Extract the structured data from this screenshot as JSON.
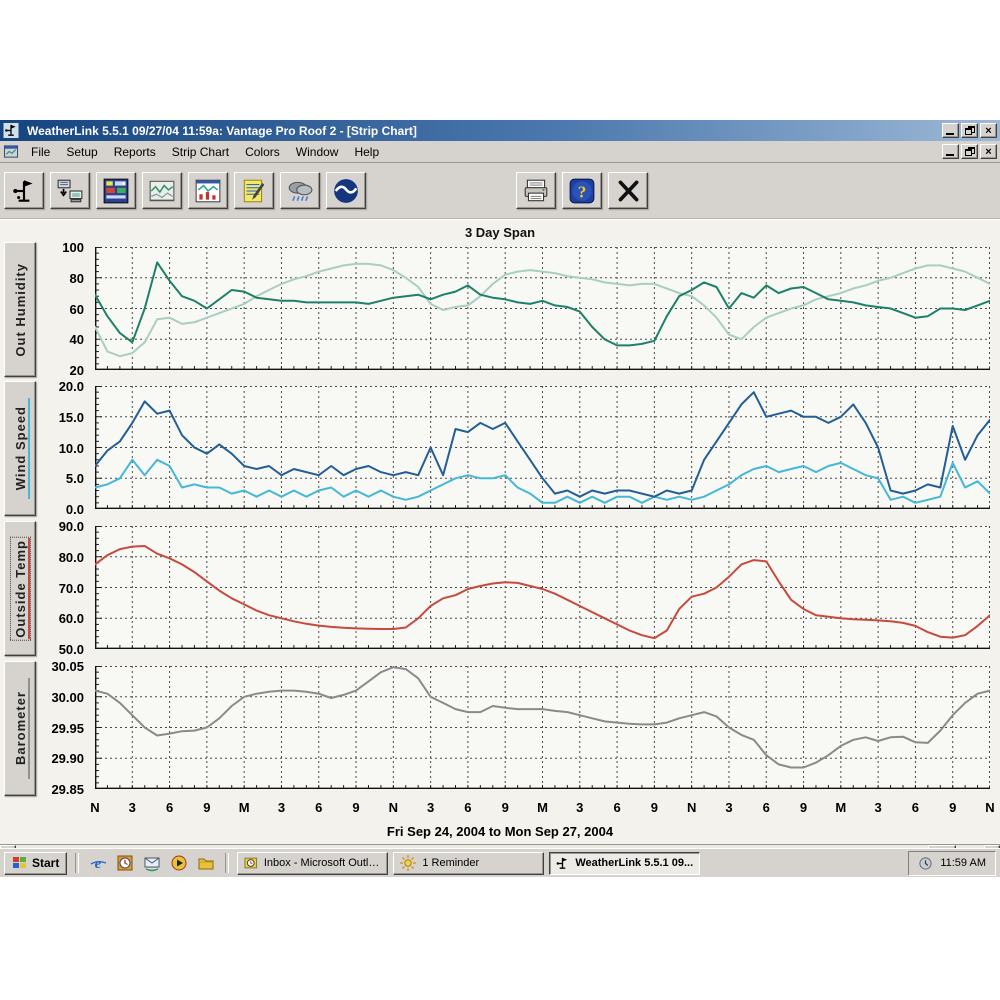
{
  "window": {
    "title": "WeatherLink 5.5.1  09/27/04  11:59a: Vantage Pro Roof 2 - [Strip Chart]",
    "menu": [
      "File",
      "Setup",
      "Reports",
      "Strip Chart",
      "Colors",
      "Window",
      "Help"
    ],
    "toolbar_icons": [
      "weather-station",
      "download",
      "bulletin",
      "strip-chart",
      "plot",
      "report",
      "weather-cloud",
      "noaa",
      "print",
      "help",
      "close"
    ]
  },
  "chart_data": {
    "type": "line",
    "title": "3 Day Span",
    "footer": "Fri Sep 24, 2004  to  Mon Sep 27, 2004",
    "grid": true,
    "plot_bg": "#f8f8f4",
    "x_labels": [
      "N",
      "3",
      "6",
      "9",
      "M",
      "3",
      "6",
      "9",
      "N",
      "3",
      "6",
      "9",
      "M",
      "3",
      "6",
      "9",
      "N",
      "3",
      "6",
      "9",
      "M",
      "3",
      "6",
      "9",
      "N"
    ],
    "x_hours_total": 72,
    "panels": [
      {
        "name": "Out Humidity",
        "ylim": [
          20,
          100
        ],
        "yticks": [
          "100",
          "80",
          "60",
          "40",
          "20"
        ],
        "underline": null,
        "focused": false,
        "series": [
          {
            "color": "#a9cec2",
            "values": [
              48,
              32,
              29,
              31,
              38,
              53,
              54,
              50,
              51,
              54,
              57,
              60,
              63,
              68,
              72,
              76,
              79,
              81,
              84,
              86,
              88,
              89,
              89,
              88,
              85,
              80,
              74,
              63,
              59,
              61,
              62,
              68,
              76,
              82,
              84,
              85,
              84,
              83,
              81,
              80,
              79,
              77,
              76,
              75,
              76,
              76,
              73,
              70,
              68,
              62,
              54,
              43,
              40,
              48,
              54,
              57,
              60,
              62,
              66,
              68,
              70,
              73,
              75,
              78,
              80,
              83,
              86,
              88,
              88,
              86,
              84,
              80,
              76
            ]
          },
          {
            "color": "#1d8169",
            "values": [
              69,
              55,
              44,
              38,
              60,
              90,
              78,
              68,
              65,
              60,
              66,
              72,
              71,
              67,
              66,
              65,
              65,
              64,
              64,
              64,
              64,
              64,
              63,
              65,
              67,
              68,
              69,
              66,
              69,
              71,
              75,
              69,
              67,
              66,
              64,
              63,
              65,
              62,
              61,
              58,
              48,
              40,
              36,
              36,
              37,
              39,
              55,
              68,
              72,
              77,
              74,
              60,
              70,
              67,
              75,
              70,
              73,
              74,
              70,
              66,
              65,
              64,
              62,
              61,
              60,
              57,
              54,
              55,
              60,
              60,
              59,
              62,
              65
            ]
          }
        ]
      },
      {
        "name": "Wind Speed",
        "ylim": [
          0,
          20
        ],
        "yticks": [
          "20.0",
          "15.0",
          "10.0",
          "5.0",
          "0.0"
        ],
        "underline": "#45b8d8",
        "focused": false,
        "series": [
          {
            "color": "#45b8d8",
            "values": [
              3.5,
              4,
              5,
              8,
              5.5,
              8,
              7,
              3.5,
              4,
              3.5,
              3.5,
              2.5,
              3,
              2,
              3,
              2,
              3,
              2,
              3,
              3.5,
              2,
              3,
              2,
              3,
              2,
              1.5,
              2,
              3,
              4,
              5,
              5.5,
              5,
              5,
              5.5,
              3.5,
              2.5,
              1,
              1,
              2,
              1,
              2,
              1,
              2,
              2,
              1,
              2,
              1.5,
              2,
              1.5,
              2,
              3,
              4,
              5.5,
              6.5,
              7,
              6,
              6.5,
              7,
              6,
              7,
              7.5,
              6.5,
              5.5,
              5,
              1.5,
              2,
              1,
              1.5,
              2,
              7.5,
              3.5,
              4.5,
              2.5
            ]
          },
          {
            "color": "#235f94",
            "values": [
              7,
              9.5,
              11,
              14,
              17.5,
              15.5,
              16,
              12,
              10,
              9,
              10.5,
              9,
              7,
              6.5,
              7,
              5.5,
              6.5,
              6,
              5.5,
              7,
              5.5,
              6.5,
              7,
              6,
              5.5,
              6,
              5.5,
              10,
              5.5,
              13,
              12.5,
              14,
              13,
              14,
              11,
              8,
              5,
              2.5,
              3,
              2,
              3,
              2.5,
              3,
              3,
              2.5,
              2,
              3,
              2.5,
              3,
              8,
              11,
              14,
              17,
              19,
              15,
              15.5,
              16,
              15,
              15,
              14,
              15,
              17,
              14,
              10,
              3,
              2.5,
              3,
              4,
              3.5,
              13.5,
              8,
              12,
              14.5
            ]
          }
        ]
      },
      {
        "name": "Outside Temp",
        "ylim": [
          50,
          90
        ],
        "yticks": [
          "90.0",
          "80.0",
          "70.0",
          "60.0",
          "50.0"
        ],
        "underline": "#c64a3e",
        "focused": true,
        "series": [
          {
            "color": "#c64a3e",
            "values": [
              77.5,
              80.5,
              82.5,
              83.3,
              83.5,
              81,
              79.5,
              77.5,
              75,
              72,
              69,
              66.5,
              64.5,
              62.5,
              61,
              60,
              59,
              58.2,
              57.6,
              57.2,
              56.9,
              56.7,
              56.6,
              56.5,
              56.5,
              57,
              60,
              64,
              66.5,
              67.5,
              69.5,
              70.5,
              71.3,
              71.7,
              71.5,
              70.5,
              69.5,
              68,
              66,
              64,
              62,
              60,
              58,
              56,
              54.5,
              53.5,
              56,
              63,
              67,
              68,
              70,
              73.5,
              77.5,
              78.9,
              78.5,
              72,
              66,
              63,
              61,
              60.5,
              60,
              59.7,
              59.5,
              59.3,
              59,
              58.5,
              57.5,
              55.5,
              54,
              53.7,
              54.5,
              57.5,
              61
            ]
          }
        ]
      },
      {
        "name": "Barometer",
        "ylim": [
          29.85,
          30.05
        ],
        "yticks": [
          "30.05",
          "30.00",
          "29.95",
          "29.90",
          "29.85"
        ],
        "underline": "#8f8f8f",
        "focused": false,
        "series": [
          {
            "color": "#8a8a8a",
            "values": [
              30.01,
              30.005,
              29.99,
              29.97,
              29.95,
              29.937,
              29.94,
              29.944,
              29.945,
              29.95,
              29.965,
              29.985,
              30.0,
              30.005,
              30.008,
              30.01,
              30.01,
              30.008,
              30.005,
              29.998,
              30.003,
              30.01,
              30.025,
              30.04,
              30.048,
              30.045,
              30.03,
              30.0,
              29.99,
              29.98,
              29.975,
              29.975,
              29.985,
              29.982,
              29.98,
              29.98,
              29.98,
              29.977,
              29.975,
              29.97,
              29.965,
              29.96,
              29.958,
              29.956,
              29.955,
              29.955,
              29.958,
              29.965,
              29.97,
              29.975,
              29.968,
              29.95,
              29.938,
              29.93,
              29.905,
              29.89,
              29.885,
              29.885,
              29.893,
              29.905,
              29.92,
              29.93,
              29.934,
              29.928,
              29.934,
              29.935,
              29.926,
              29.925,
              29.945,
              29.97,
              29.99,
              30.005,
              30.01
            ]
          }
        ]
      }
    ]
  },
  "taskbar": {
    "start_label": "Start",
    "quick_launch": [
      "internet-explorer",
      "schedule",
      "outlook-express",
      "media-player",
      "folder"
    ],
    "tasks": [
      {
        "label": "Inbox - Microsoft Outlook",
        "icon": "inbox"
      },
      {
        "label": "1 Reminder",
        "icon": "reminder"
      },
      {
        "label": "WeatherLink 5.5.1  09...",
        "icon": "weatherlink"
      }
    ],
    "tray_time": "11:59 AM"
  }
}
